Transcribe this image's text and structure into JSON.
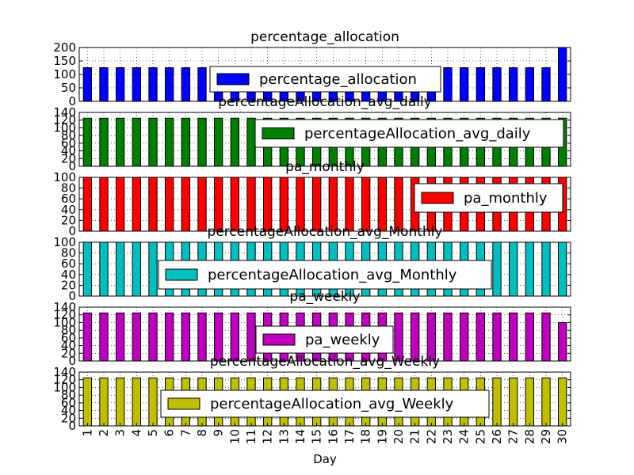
{
  "chart_data": {
    "type": "bar",
    "xlabel": "Day",
    "categories": [
      "1",
      "2",
      "3",
      "4",
      "5",
      "6",
      "7",
      "8",
      "9",
      "10",
      "11",
      "12",
      "13",
      "14",
      "15",
      "16",
      "17",
      "18",
      "19",
      "20",
      "21",
      "22",
      "23",
      "24",
      "25",
      "26",
      "27",
      "28",
      "29",
      "30"
    ],
    "subplots": [
      {
        "title": "percentage_allocation",
        "series_name": "percentage_allocation",
        "color": "#0000ff",
        "ylim": [
          0,
          200
        ],
        "yticks": [
          "0",
          "50",
          "100",
          "150",
          "200"
        ],
        "legend_position": "upper-center",
        "values": [
          125,
          125,
          125,
          125,
          125,
          125,
          125,
          125,
          125,
          125,
          125,
          125,
          125,
          125,
          125,
          125,
          125,
          125,
          125,
          125,
          125,
          125,
          125,
          125,
          125,
          125,
          125,
          125,
          125,
          200
        ]
      },
      {
        "title": "percentageAllocation_avg_daily",
        "series_name": "percentageAllocation_avg_daily",
        "color": "#008000",
        "ylim": [
          0,
          140
        ],
        "yticks": [
          "0",
          "20",
          "40",
          "60",
          "80",
          "100",
          "120",
          "140"
        ],
        "legend_position": "center-right",
        "values": [
          125,
          125,
          125,
          125,
          125,
          125,
          125,
          125,
          125,
          125,
          125,
          125,
          125,
          125,
          125,
          125,
          125,
          125,
          125,
          125,
          125,
          125,
          125,
          125,
          125,
          125,
          125,
          125,
          125,
          125
        ]
      },
      {
        "title": "pa_monthly",
        "series_name": "pa_monthly",
        "color": "#ff0000",
        "ylim": [
          0,
          100
        ],
        "yticks": [
          "0",
          "20",
          "40",
          "60",
          "80",
          "100"
        ],
        "legend_position": "right",
        "values": [
          100,
          100,
          100,
          100,
          100,
          100,
          100,
          100,
          100,
          100,
          100,
          100,
          100,
          100,
          100,
          100,
          100,
          100,
          100,
          100,
          100,
          100,
          100,
          100,
          100,
          100,
          100,
          100,
          100,
          100
        ]
      },
      {
        "title": "percentageAllocation_avg_Monthly",
        "series_name": "percentageAllocation_avg_Monthly",
        "color": "#00bfbf",
        "ylim": [
          0,
          100
        ],
        "yticks": [
          "0",
          "20",
          "40",
          "60",
          "80",
          "100"
        ],
        "legend_position": "center",
        "values": [
          100,
          100,
          100,
          100,
          100,
          100,
          100,
          100,
          100,
          100,
          100,
          100,
          100,
          100,
          100,
          100,
          100,
          100,
          100,
          100,
          100,
          100,
          100,
          100,
          100,
          100,
          100,
          100,
          100,
          100
        ]
      },
      {
        "title": "pa_weekly",
        "series_name": "pa_weekly",
        "color": "#bf00bf",
        "ylim": [
          0,
          140
        ],
        "yticks": [
          "0",
          "20",
          "40",
          "60",
          "80",
          "100",
          "120",
          "140"
        ],
        "legend_position": "center",
        "values": [
          125,
          125,
          125,
          125,
          125,
          125,
          125,
          125,
          125,
          125,
          125,
          125,
          125,
          125,
          125,
          125,
          125,
          125,
          125,
          125,
          125,
          125,
          125,
          125,
          125,
          125,
          125,
          125,
          125,
          100
        ]
      },
      {
        "title": "percentageAllocation_avg_Weekly",
        "series_name": "percentageAllocation_avg_Weekly",
        "color": "#bfbf00",
        "ylim": [
          0,
          140
        ],
        "yticks": [
          "0",
          "20",
          "40",
          "60",
          "80",
          "100",
          "120",
          "140"
        ],
        "legend_position": "center",
        "values": [
          125,
          125,
          125,
          125,
          125,
          125,
          125,
          125,
          125,
          125,
          125,
          125,
          125,
          125,
          125,
          125,
          125,
          125,
          125,
          125,
          125,
          125,
          125,
          125,
          125,
          125,
          125,
          125,
          125,
          125
        ]
      }
    ]
  }
}
